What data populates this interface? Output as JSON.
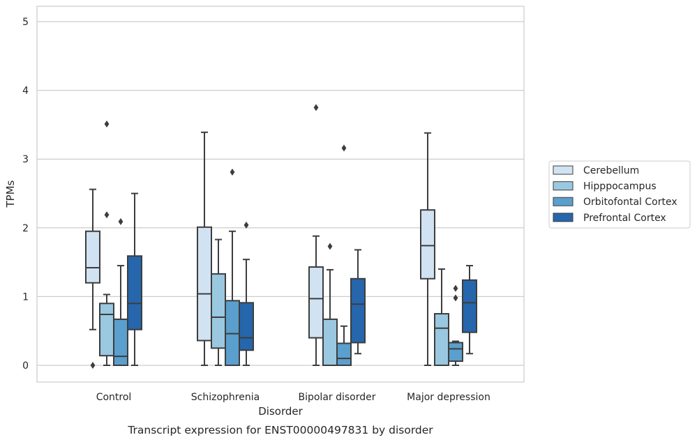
{
  "chart_data": {
    "type": "box",
    "title": "",
    "caption": "Transcript expression for ENST00000497831 by disorder",
    "xlabel": "Disorder",
    "ylabel": "TPMs",
    "ylim": [
      -0.24,
      5.22
    ],
    "yticks": [
      "0",
      "1",
      "2",
      "3",
      "4",
      "5"
    ],
    "grid": "horizontal",
    "legend_placement": "right",
    "categories": [
      "Control",
      "Schizophrenia",
      "Bipolar disorder",
      "Major depression"
    ],
    "series": [
      {
        "name": "Cerebellum",
        "color": "#d1e2f2",
        "boxes": [
          {
            "whisker_low": 0.52,
            "q1": 1.2,
            "median": 1.42,
            "q3": 1.95,
            "whisker_high": 2.56,
            "outliers": [
              0.0
            ]
          },
          {
            "whisker_low": 0.0,
            "q1": 0.36,
            "median": 1.04,
            "q3": 2.01,
            "whisker_high": 3.39,
            "outliers": []
          },
          {
            "whisker_low": 0.0,
            "q1": 0.4,
            "median": 0.97,
            "q3": 1.43,
            "whisker_high": 1.88,
            "outliers": [
              3.75
            ]
          },
          {
            "whisker_low": 0.0,
            "q1": 1.26,
            "median": 1.74,
            "q3": 2.26,
            "whisker_high": 3.38,
            "outliers": []
          }
        ]
      },
      {
        "name": "Hipppocampus",
        "color": "#9ac8e0",
        "boxes": [
          {
            "whisker_low": 0.0,
            "q1": 0.14,
            "median": 0.74,
            "q3": 0.9,
            "whisker_high": 1.03,
            "outliers": [
              2.19,
              3.51
            ]
          },
          {
            "whisker_low": 0.0,
            "q1": 0.25,
            "median": 0.7,
            "q3": 1.33,
            "whisker_high": 1.83,
            "outliers": []
          },
          {
            "whisker_low": 0.0,
            "q1": 0.0,
            "median": 0.0,
            "q3": 0.67,
            "whisker_high": 1.39,
            "outliers": [
              1.73
            ]
          },
          {
            "whisker_low": 0.0,
            "q1": 0.0,
            "median": 0.54,
            "q3": 0.75,
            "whisker_high": 1.4,
            "outliers": []
          }
        ]
      },
      {
        "name": "Orbitofontal Cortex",
        "color": "#5a9fcd",
        "boxes": [
          {
            "whisker_low": 0.0,
            "q1": 0.0,
            "median": 0.13,
            "q3": 0.67,
            "whisker_high": 1.45,
            "outliers": [
              2.09
            ]
          },
          {
            "whisker_low": 0.0,
            "q1": 0.0,
            "median": 0.46,
            "q3": 0.94,
            "whisker_high": 1.95,
            "outliers": [
              2.81
            ]
          },
          {
            "whisker_low": 0.0,
            "q1": 0.0,
            "median": 0.1,
            "q3": 0.32,
            "whisker_high": 0.57,
            "outliers": [
              3.16
            ]
          },
          {
            "whisker_low": 0.0,
            "q1": 0.06,
            "median": 0.24,
            "q3": 0.33,
            "whisker_high": 0.35,
            "outliers": [
              0.98,
              1.12
            ]
          }
        ]
      },
      {
        "name": "Prefrontal Cortex",
        "color": "#2666ac",
        "boxes": [
          {
            "whisker_low": 0.0,
            "q1": 0.52,
            "median": 0.9,
            "q3": 1.59,
            "whisker_high": 2.5,
            "outliers": []
          },
          {
            "whisker_low": 0.0,
            "q1": 0.22,
            "median": 0.4,
            "q3": 0.91,
            "whisker_high": 1.54,
            "outliers": [
              2.04
            ]
          },
          {
            "whisker_low": 0.17,
            "q1": 0.33,
            "median": 0.89,
            "q3": 1.26,
            "whisker_high": 1.68,
            "outliers": []
          },
          {
            "whisker_low": 0.17,
            "q1": 0.48,
            "median": 0.91,
            "q3": 1.24,
            "whisker_high": 1.45,
            "outliers": []
          }
        ]
      }
    ]
  }
}
